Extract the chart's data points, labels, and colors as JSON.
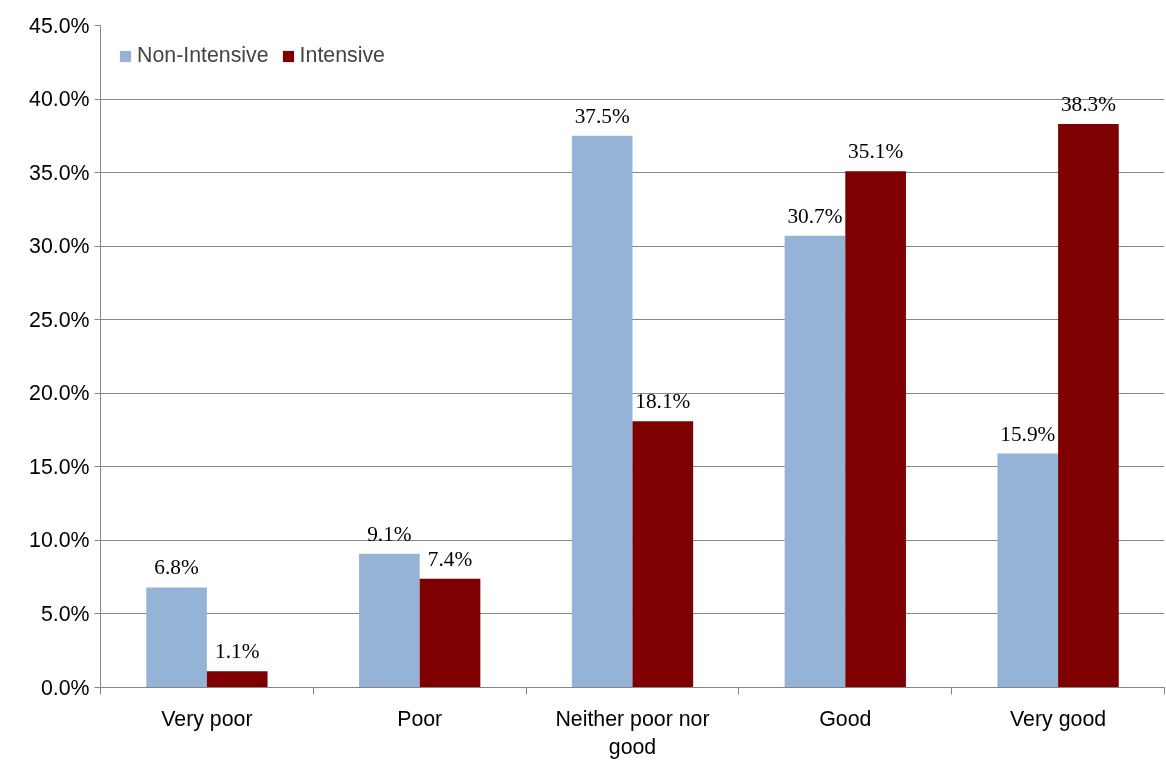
{
  "chart_data": {
    "type": "bar",
    "categories": [
      "Very poor",
      "Poor",
      "Neither poor nor good",
      "Good",
      "Very good"
    ],
    "series": [
      {
        "name": "Non-Intensive",
        "color": "#95b3d7",
        "values": [
          6.8,
          9.1,
          37.5,
          30.7,
          15.9
        ],
        "value_labels": [
          "6.8%",
          "9.1%",
          "37.5%",
          "30.7%",
          "15.9%"
        ]
      },
      {
        "name": "Intensive",
        "color": "#7f0000",
        "values": [
          1.1,
          7.4,
          18.1,
          35.1,
          38.3
        ],
        "value_labels": [
          "1.1%",
          "7.4%",
          "18.1%",
          "35.1%",
          "38.3%"
        ]
      }
    ],
    "ylim": [
      0,
      45
    ],
    "yticks": [
      {
        "value": 0,
        "label": "0.0%"
      },
      {
        "value": 5,
        "label": "5.0%"
      },
      {
        "value": 10,
        "label": "10.0%"
      },
      {
        "value": 15,
        "label": "15.0%"
      },
      {
        "value": 20,
        "label": "20.0%"
      },
      {
        "value": 25,
        "label": "25.0%"
      },
      {
        "value": 30,
        "label": "30.0%"
      },
      {
        "value": 35,
        "label": "35.0%"
      },
      {
        "value": 40,
        "label": "40.0%"
      },
      {
        "value": 45,
        "label": "45.0%"
      }
    ],
    "grid": "y",
    "legend": "top left"
  }
}
